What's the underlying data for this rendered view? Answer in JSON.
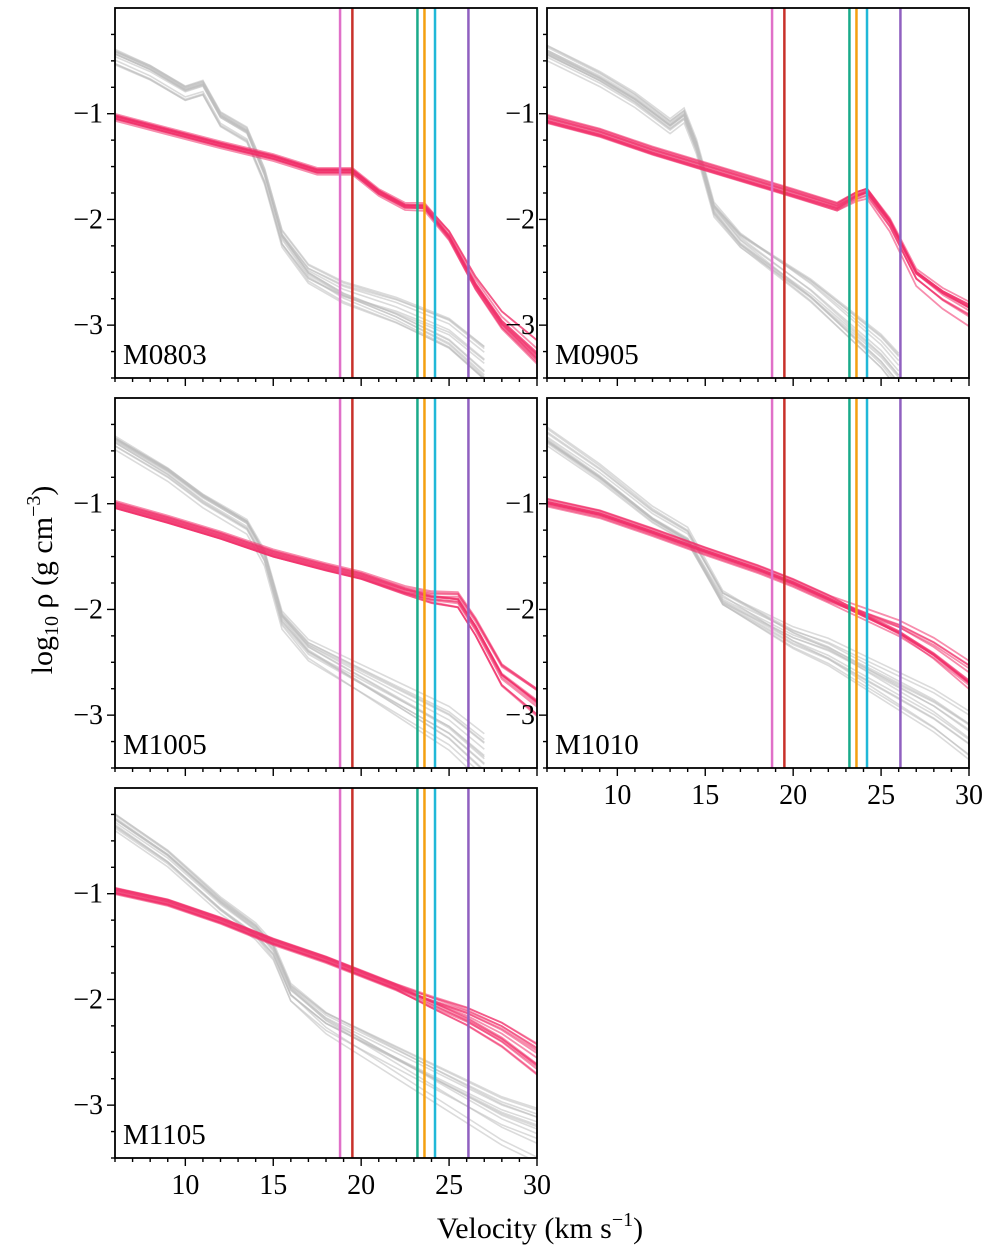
{
  "figure": {
    "xlabel": "Velocity (km s",
    "xlabel_sup": "−1",
    "xlabel_close": ")",
    "ylabel": "log",
    "ylabel_sub": "10",
    "ylabel_mid": " ρ (g cm",
    "ylabel_sup": "−3",
    "ylabel_close": ")"
  },
  "chart_data": {
    "type": "line",
    "xlim": [
      6,
      30
    ],
    "ylim": [
      -3.5,
      0
    ],
    "x_ticks": [
      10,
      15,
      20,
      25,
      30
    ],
    "y_ticks": [
      -1,
      -2,
      -3
    ],
    "x_tick_labels": [
      "10",
      "15",
      "20",
      "25",
      "30"
    ],
    "y_tick_labels": [
      "−1",
      "−2",
      "−3"
    ],
    "colors": {
      "highlight": "#f0306a",
      "background": "#bdbdbd"
    },
    "vertical_lines": [
      {
        "x": 18.8,
        "color": "#e070c8"
      },
      {
        "x": 19.5,
        "color": "#c8302a"
      },
      {
        "x": 23.2,
        "color": "#1aaa8a"
      },
      {
        "x": 23.6,
        "color": "#f4a010"
      },
      {
        "x": 24.2,
        "color": "#20b8d8"
      },
      {
        "x": 26.1,
        "color": "#9060c0"
      }
    ],
    "panels": [
      {
        "label": "M0803",
        "pink": [
          [
            6,
            -1.04
          ],
          [
            9,
            -1.17
          ],
          [
            12,
            -1.3
          ],
          [
            15,
            -1.42
          ],
          [
            17.5,
            -1.55
          ],
          [
            19.5,
            -1.55
          ],
          [
            21,
            -1.75
          ],
          [
            22.5,
            -1.88
          ],
          [
            23.6,
            -1.88
          ],
          [
            25,
            -2.15
          ],
          [
            26.5,
            -2.6
          ],
          [
            28,
            -2.95
          ],
          [
            30,
            -3.25
          ]
        ],
        "gray": [
          [
            6,
            -0.45
          ],
          [
            8,
            -0.6
          ],
          [
            10,
            -0.8
          ],
          [
            11,
            -0.75
          ],
          [
            12,
            -1.05
          ],
          [
            13.5,
            -1.2
          ],
          [
            14.5,
            -1.6
          ],
          [
            15.5,
            -2.2
          ],
          [
            17,
            -2.55
          ],
          [
            19,
            -2.75
          ],
          [
            22,
            -2.95
          ],
          [
            25,
            -3.2
          ],
          [
            27,
            -3.5
          ]
        ]
      },
      {
        "label": "M0905",
        "pink": [
          [
            6,
            -1.05
          ],
          [
            9,
            -1.18
          ],
          [
            12,
            -1.35
          ],
          [
            15,
            -1.5
          ],
          [
            18,
            -1.65
          ],
          [
            20,
            -1.75
          ],
          [
            22.5,
            -1.88
          ],
          [
            23.6,
            -1.78
          ],
          [
            24.2,
            -1.75
          ],
          [
            25.5,
            -2.05
          ],
          [
            27,
            -2.55
          ],
          [
            28.5,
            -2.75
          ],
          [
            30,
            -2.9
          ]
        ],
        "gray": [
          [
            6,
            -0.4
          ],
          [
            9,
            -0.65
          ],
          [
            11,
            -0.85
          ],
          [
            13,
            -1.1
          ],
          [
            13.8,
            -1.0
          ],
          [
            14.5,
            -1.3
          ],
          [
            15.5,
            -1.9
          ],
          [
            17,
            -2.2
          ],
          [
            19,
            -2.45
          ],
          [
            21,
            -2.7
          ],
          [
            23,
            -3.0
          ],
          [
            25,
            -3.3
          ],
          [
            26,
            -3.5
          ]
        ]
      },
      {
        "label": "M1005",
        "pink": [
          [
            6,
            -1.01
          ],
          [
            9,
            -1.15
          ],
          [
            12,
            -1.3
          ],
          [
            15,
            -1.47
          ],
          [
            18,
            -1.6
          ],
          [
            20,
            -1.68
          ],
          [
            22.5,
            -1.82
          ],
          [
            24,
            -1.88
          ],
          [
            25.5,
            -1.9
          ],
          [
            26.5,
            -2.15
          ],
          [
            28,
            -2.6
          ],
          [
            30,
            -2.85
          ]
        ],
        "gray": [
          [
            6,
            -0.4
          ],
          [
            9,
            -0.7
          ],
          [
            11,
            -0.95
          ],
          [
            12.5,
            -1.1
          ],
          [
            13.5,
            -1.2
          ],
          [
            14.5,
            -1.5
          ],
          [
            15.5,
            -2.1
          ],
          [
            17,
            -2.4
          ],
          [
            19,
            -2.6
          ],
          [
            21,
            -2.8
          ],
          [
            23,
            -3.0
          ],
          [
            25,
            -3.2
          ],
          [
            27,
            -3.5
          ]
        ]
      },
      {
        "label": "M1010",
        "pink": [
          [
            6,
            -0.99
          ],
          [
            9,
            -1.1
          ],
          [
            12,
            -1.27
          ],
          [
            15,
            -1.45
          ],
          [
            18,
            -1.62
          ],
          [
            20,
            -1.75
          ],
          [
            22,
            -1.9
          ],
          [
            24,
            -2.05
          ],
          [
            26,
            -2.2
          ],
          [
            28,
            -2.4
          ],
          [
            30,
            -2.65
          ]
        ],
        "gray": [
          [
            6,
            -0.35
          ],
          [
            9,
            -0.7
          ],
          [
            12,
            -1.1
          ],
          [
            14,
            -1.3
          ],
          [
            15,
            -1.6
          ],
          [
            16,
            -1.9
          ],
          [
            18,
            -2.1
          ],
          [
            20,
            -2.3
          ],
          [
            22,
            -2.45
          ],
          [
            24,
            -2.65
          ],
          [
            26,
            -2.85
          ],
          [
            28,
            -3.05
          ],
          [
            30,
            -3.3
          ]
        ]
      },
      {
        "label": "M1105",
        "pink": [
          [
            6,
            -0.97
          ],
          [
            9,
            -1.08
          ],
          [
            12,
            -1.25
          ],
          [
            15,
            -1.45
          ],
          [
            18,
            -1.62
          ],
          [
            20,
            -1.75
          ],
          [
            22,
            -1.88
          ],
          [
            24,
            -2.02
          ],
          [
            26,
            -2.15
          ],
          [
            28,
            -2.32
          ],
          [
            30,
            -2.55
          ]
        ],
        "gray": [
          [
            6,
            -0.3
          ],
          [
            9,
            -0.65
          ],
          [
            12,
            -1.1
          ],
          [
            14,
            -1.35
          ],
          [
            15,
            -1.55
          ],
          [
            16,
            -1.95
          ],
          [
            18,
            -2.25
          ],
          [
            20,
            -2.45
          ],
          [
            22,
            -2.65
          ],
          [
            24,
            -2.85
          ],
          [
            26,
            -3.05
          ],
          [
            28,
            -3.25
          ],
          [
            30,
            -3.4
          ]
        ]
      }
    ]
  }
}
